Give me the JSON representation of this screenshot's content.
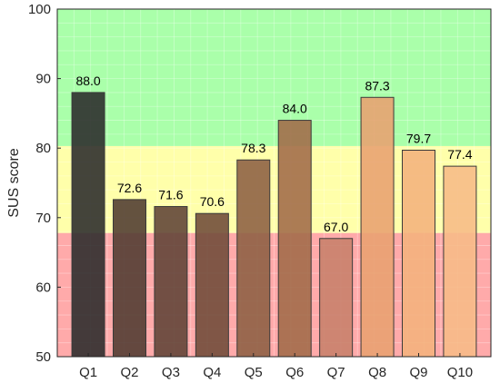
{
  "chart_data": {
    "type": "bar",
    "title": "",
    "xlabel": "",
    "ylabel": "SUS score",
    "ylim": [
      50,
      100
    ],
    "yticks": [
      50,
      60,
      70,
      80,
      90,
      100
    ],
    "grid": true,
    "categories": [
      "Q1",
      "Q2",
      "Q3",
      "Q4",
      "Q5",
      "Q6",
      "Q7",
      "Q8",
      "Q9",
      "Q10"
    ],
    "values": [
      88.0,
      72.6,
      71.6,
      70.6,
      78.3,
      84.0,
      67.0,
      87.3,
      79.7,
      77.4
    ],
    "value_labels": [
      "88.0",
      "72.6",
      "71.6",
      "70.6",
      "78.3",
      "84.0",
      "67.0",
      "87.3",
      "79.7",
      "77.4"
    ],
    "bar_colors": [
      "#2a2a2a",
      "#4e3a30",
      "#5e4235",
      "#6e4a38",
      "#8c5f42",
      "#a06a48",
      "#c7806a",
      "#e8a070",
      "#f4b27c",
      "#f7bb86"
    ],
    "background_bands": [
      {
        "from": 50,
        "to": 67.8,
        "color": "#ffaaaa"
      },
      {
        "from": 67.8,
        "to": 80.3,
        "color": "#ffffaa"
      },
      {
        "from": 80.3,
        "to": 100,
        "color": "#aaffaa"
      }
    ]
  }
}
